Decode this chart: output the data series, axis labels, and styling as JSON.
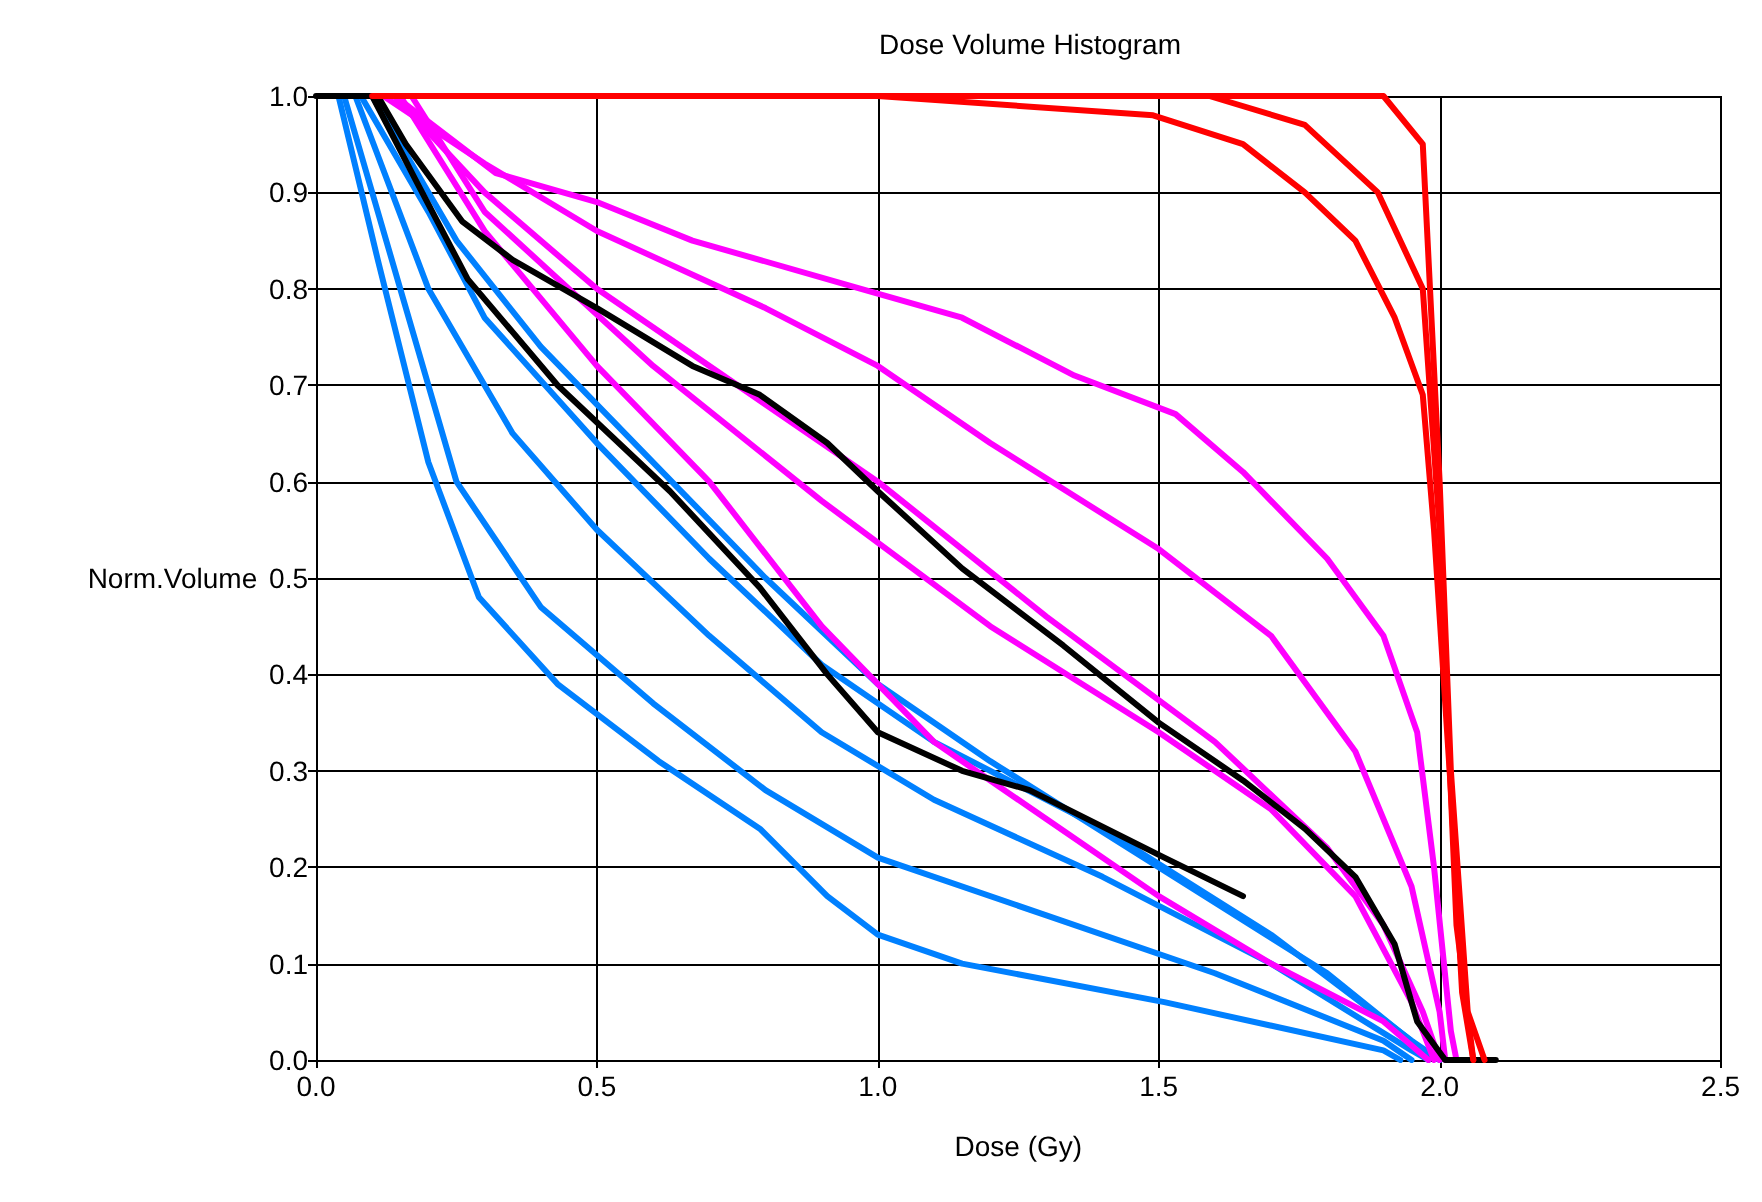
{
  "chart_data": {
    "type": "line",
    "title": "Dose Volume Histogram",
    "xlabel": "Dose (Gy)",
    "ylabel": "Norm.Volume",
    "xlim": [
      0,
      2.5
    ],
    "xticks": [
      {
        "value": 0,
        "label": "0.0"
      },
      0.5,
      {
        "value": 1,
        "label": "1.0"
      },
      1.5,
      {
        "value": 2,
        "label": "2.0"
      },
      2.5
    ],
    "ylim": [
      0,
      1
    ],
    "yticks": [
      {
        "value": 0,
        "label": "0.0"
      },
      0.1,
      0.2,
      0.3,
      0.4,
      0.5,
      0.6,
      0.7,
      0.8,
      0.9,
      {
        "value": 1,
        "label": "1.0"
      }
    ],
    "grid": true,
    "marker": "none",
    "line_style": "solid",
    "series": [
      {
        "color": "#0080ff",
        "x": [
          0.04,
          0.11,
          0.2,
          0.29,
          0.43,
          0.61,
          0.79,
          0.91,
          1.0,
          1.15,
          1.51,
          1.9,
          1.93
        ],
        "values": [
          1,
          0.83,
          0.62,
          0.48,
          0.39,
          0.31,
          0.24,
          0.17,
          0.13,
          0.1,
          0.06,
          0.01,
          0
        ]
      },
      {
        "color": "#0080ff",
        "x": [
          0.05,
          0.15,
          0.25,
          0.4,
          0.6,
          0.8,
          1.0,
          1.3,
          1.6,
          1.9,
          1.95
        ],
        "values": [
          1,
          0.8,
          0.6,
          0.47,
          0.37,
          0.28,
          0.21,
          0.15,
          0.09,
          0.02,
          0
        ]
      },
      {
        "color": "#0080ff",
        "x": [
          0.07,
          0.2,
          0.35,
          0.5,
          0.7,
          0.9,
          1.1,
          1.4,
          1.7,
          1.95,
          1.98
        ],
        "values": [
          1,
          0.8,
          0.65,
          0.55,
          0.44,
          0.34,
          0.27,
          0.19,
          0.1,
          0.01,
          0
        ]
      },
      {
        "color": "#0080ff",
        "x": [
          0.08,
          0.2,
          0.3,
          0.5,
          0.7,
          0.9,
          1.1,
          1.4,
          1.7,
          1.95,
          2.0
        ],
        "values": [
          1,
          0.88,
          0.77,
          0.64,
          0.52,
          0.41,
          0.33,
          0.24,
          0.13,
          0.02,
          0
        ]
      },
      {
        "color": "#0080ff",
        "x": [
          0.1,
          0.25,
          0.4,
          0.6,
          0.8,
          1.0,
          1.2,
          1.5,
          1.8,
          1.97,
          2.0
        ],
        "values": [
          1,
          0.85,
          0.74,
          0.62,
          0.5,
          0.39,
          0.31,
          0.2,
          0.09,
          0.01,
          0
        ]
      },
      {
        "color": "#ff00ff",
        "x": [
          0.14,
          0.32,
          0.5,
          0.67,
          0.97,
          1.15,
          1.35,
          1.53,
          1.65,
          1.8,
          1.9,
          1.96,
          1.99,
          2.02,
          2.03
        ],
        "values": [
          1,
          0.92,
          0.89,
          0.85,
          0.8,
          0.77,
          0.71,
          0.67,
          0.61,
          0.52,
          0.44,
          0.34,
          0.2,
          0.03,
          0
        ]
      },
      {
        "color": "#ff00ff",
        "x": [
          0.12,
          0.3,
          0.5,
          0.8,
          1.0,
          1.2,
          1.5,
          1.7,
          1.85,
          1.95,
          2.0,
          2.01
        ],
        "values": [
          1,
          0.93,
          0.86,
          0.78,
          0.72,
          0.64,
          0.53,
          0.44,
          0.32,
          0.18,
          0.05,
          0
        ]
      },
      {
        "color": "#ff00ff",
        "x": [
          0.14,
          0.3,
          0.5,
          0.8,
          1.0,
          1.3,
          1.6,
          1.8,
          1.9,
          1.97,
          2.0
        ],
        "values": [
          1,
          0.9,
          0.8,
          0.68,
          0.6,
          0.46,
          0.33,
          0.22,
          0.14,
          0.05,
          0
        ]
      },
      {
        "color": "#ff00ff",
        "x": [
          0.17,
          0.3,
          0.6,
          0.9,
          1.2,
          1.5,
          1.7,
          1.85,
          1.95,
          1.99
        ],
        "values": [
          1,
          0.88,
          0.72,
          0.58,
          0.45,
          0.34,
          0.26,
          0.17,
          0.06,
          0
        ]
      },
      {
        "color": "#ff00ff",
        "x": [
          0.15,
          0.3,
          0.5,
          0.7,
          0.9,
          1.1,
          1.3,
          1.5,
          1.7,
          1.9,
          1.98
        ],
        "values": [
          1,
          0.86,
          0.72,
          0.6,
          0.45,
          0.33,
          0.25,
          0.17,
          0.1,
          0.04,
          0
        ]
      },
      {
        "color": "#000000",
        "x": [
          0.1,
          0.18,
          0.27,
          0.43,
          0.63,
          0.79,
          0.91,
          1.0,
          1.15,
          1.27,
          1.51,
          1.65
        ],
        "values": [
          1,
          0.91,
          0.81,
          0.7,
          0.59,
          0.49,
          0.4,
          0.34,
          0.3,
          0.28,
          0.21,
          0.17
        ]
      },
      {
        "color": "#000000",
        "x": [
          0,
          0.11,
          0.16,
          0.26,
          0.35,
          0.5,
          0.67,
          0.79,
          0.91,
          1.0,
          1.15,
          1.33,
          1.5,
          1.65,
          1.76,
          1.85,
          1.92,
          1.96,
          2.01,
          2.1
        ],
        "values": [
          1,
          1,
          0.95,
          0.87,
          0.83,
          0.78,
          0.72,
          0.69,
          0.64,
          0.59,
          0.51,
          0.43,
          0.35,
          0.29,
          0.24,
          0.19,
          0.12,
          0.04,
          0,
          0
        ]
      },
      {
        "color": "#ff0000",
        "x": [
          1.0,
          1.49,
          1.65,
          1.76,
          1.85,
          1.92,
          1.97,
          1.99,
          2.02,
          2.04,
          2.06
        ],
        "values": [
          1,
          0.98,
          0.95,
          0.9,
          0.85,
          0.77,
          0.69,
          0.55,
          0.28,
          0.07,
          0
        ]
      },
      {
        "color": "#ff0000",
        "x": [
          1.59,
          1.76,
          1.89,
          1.97,
          2.0,
          2.03,
          2.06
        ],
        "values": [
          1,
          0.97,
          0.9,
          0.8,
          0.55,
          0.14,
          0
        ]
      },
      {
        "color": "#ff0000",
        "x": [
          0.1,
          1.9,
          1.97,
          2.0,
          2.02,
          2.05,
          2.08
        ],
        "values": [
          1,
          1,
          0.95,
          0.6,
          0.3,
          0.05,
          0
        ]
      }
    ]
  }
}
